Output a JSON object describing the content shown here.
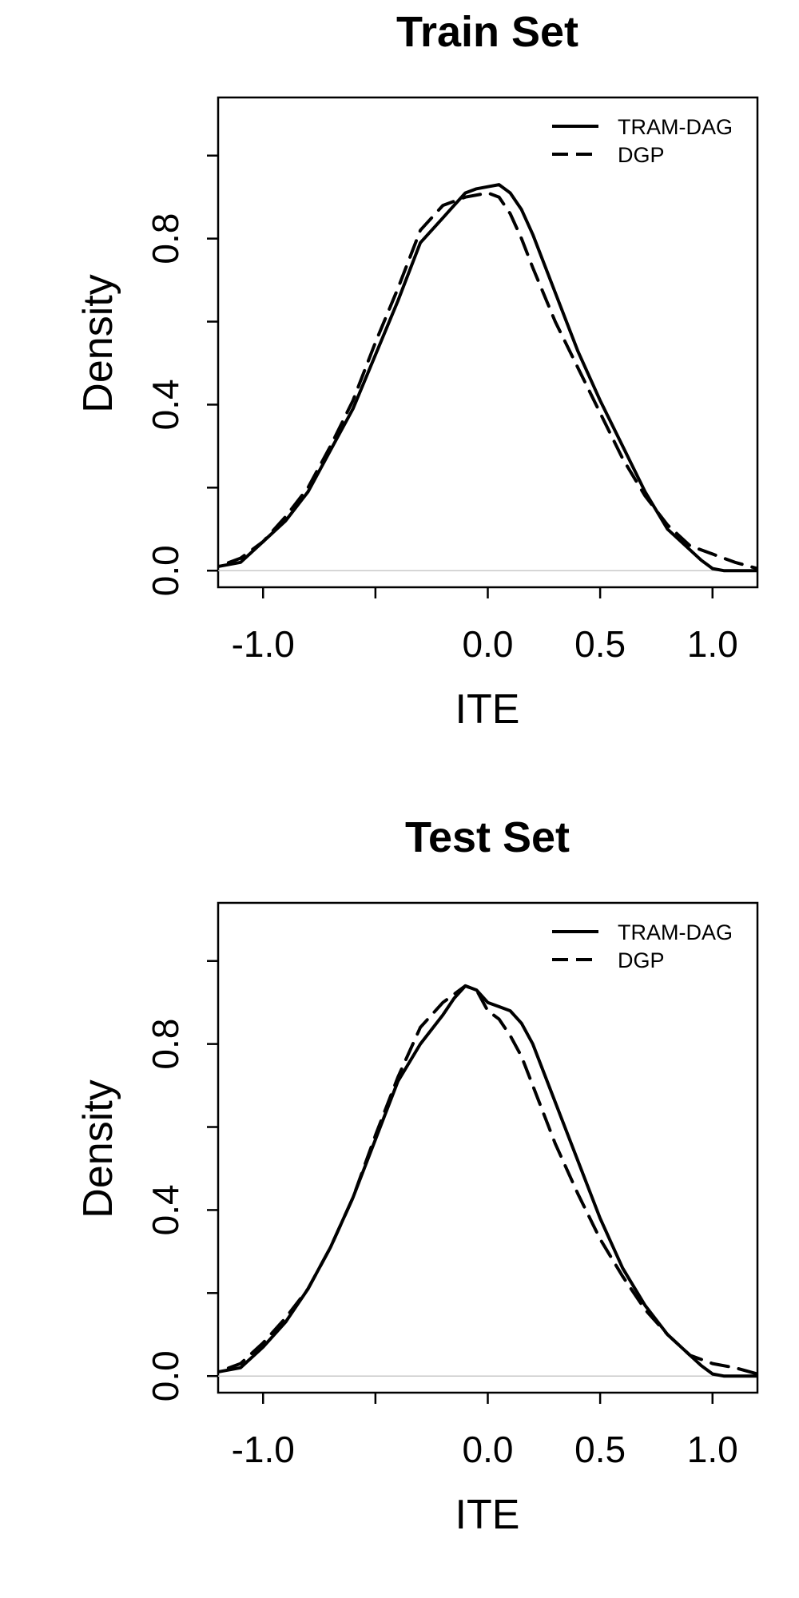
{
  "chart_data": [
    {
      "type": "line",
      "title": "Train Set",
      "xlabel": "ITE",
      "ylabel": "Density",
      "xlim": [
        -1.2,
        1.2
      ],
      "ylim": [
        -0.04,
        1.14
      ],
      "x_ticks": [
        -1.0,
        -0.5,
        0.0,
        0.5,
        1.0
      ],
      "x_tick_labels": [
        "-1.0",
        "",
        "0.0",
        "0.5",
        "1.0"
      ],
      "y_ticks": [
        0.0,
        0.2,
        0.4,
        0.6,
        0.8,
        1.0
      ],
      "y_tick_labels": [
        "0.0",
        "",
        "0.4",
        "",
        "0.8",
        ""
      ],
      "grid": false,
      "zero_line": true,
      "legend": {
        "position": "top-right",
        "entries": [
          "TRAM-DAG",
          "DGP"
        ]
      },
      "series": [
        {
          "name": "TRAM-DAG",
          "line_style": "solid",
          "x": [
            -1.3,
            -1.1,
            -1.0,
            -0.9,
            -0.8,
            -0.7,
            -0.6,
            -0.5,
            -0.4,
            -0.3,
            -0.2,
            -0.15,
            -0.1,
            -0.05,
            0.0,
            0.05,
            0.1,
            0.15,
            0.2,
            0.3,
            0.4,
            0.5,
            0.6,
            0.7,
            0.8,
            0.9,
            0.95,
            1.0,
            1.05,
            1.3
          ],
          "y": [
            0.0,
            0.02,
            0.07,
            0.12,
            0.19,
            0.29,
            0.39,
            0.52,
            0.65,
            0.79,
            0.85,
            0.88,
            0.91,
            0.92,
            0.925,
            0.93,
            0.91,
            0.87,
            0.81,
            0.67,
            0.53,
            0.41,
            0.3,
            0.19,
            0.1,
            0.05,
            0.025,
            0.005,
            0.0,
            0.0
          ]
        },
        {
          "name": "DGP",
          "line_style": "dashed",
          "x": [
            -1.4,
            -1.2,
            -1.1,
            -1.0,
            -0.9,
            -0.8,
            -0.7,
            -0.6,
            -0.5,
            -0.4,
            -0.3,
            -0.2,
            -0.1,
            0.0,
            0.05,
            0.1,
            0.15,
            0.2,
            0.3,
            0.4,
            0.5,
            0.6,
            0.7,
            0.8,
            0.9,
            1.0,
            1.05,
            1.1,
            1.2,
            1.3
          ],
          "y": [
            0.005,
            0.01,
            0.03,
            0.07,
            0.13,
            0.2,
            0.3,
            0.41,
            0.55,
            0.68,
            0.82,
            0.88,
            0.9,
            0.91,
            0.9,
            0.86,
            0.8,
            0.73,
            0.6,
            0.49,
            0.38,
            0.27,
            0.18,
            0.11,
            0.06,
            0.04,
            0.03,
            0.02,
            0.005,
            0.0
          ]
        }
      ]
    },
    {
      "type": "line",
      "title": "Test Set",
      "xlabel": "ITE",
      "ylabel": "Density",
      "xlim": [
        -1.2,
        1.2
      ],
      "ylim": [
        -0.04,
        1.14
      ],
      "x_ticks": [
        -1.0,
        -0.5,
        0.0,
        0.5,
        1.0
      ],
      "x_tick_labels": [
        "-1.0",
        "",
        "0.0",
        "0.5",
        "1.0"
      ],
      "y_ticks": [
        0.0,
        0.2,
        0.4,
        0.6,
        0.8,
        1.0
      ],
      "y_tick_labels": [
        "0.0",
        "",
        "0.4",
        "",
        "0.8",
        ""
      ],
      "grid": false,
      "zero_line": true,
      "legend": {
        "position": "top-right",
        "entries": [
          "TRAM-DAG",
          "DGP"
        ]
      },
      "series": [
        {
          "name": "TRAM-DAG",
          "line_style": "solid",
          "x": [
            -1.3,
            -1.1,
            -1.0,
            -0.9,
            -0.8,
            -0.7,
            -0.6,
            -0.5,
            -0.4,
            -0.3,
            -0.2,
            -0.15,
            -0.1,
            -0.05,
            0.0,
            0.05,
            0.1,
            0.15,
            0.2,
            0.3,
            0.4,
            0.5,
            0.6,
            0.7,
            0.8,
            0.9,
            0.95,
            1.0,
            1.05,
            1.3
          ],
          "y": [
            0.0,
            0.02,
            0.07,
            0.13,
            0.21,
            0.31,
            0.43,
            0.57,
            0.71,
            0.8,
            0.87,
            0.91,
            0.94,
            0.93,
            0.9,
            0.89,
            0.88,
            0.85,
            0.8,
            0.66,
            0.52,
            0.38,
            0.26,
            0.17,
            0.1,
            0.05,
            0.025,
            0.005,
            0.0,
            0.0
          ]
        },
        {
          "name": "DGP",
          "line_style": "dashed",
          "x": [
            -1.4,
            -1.2,
            -1.1,
            -1.0,
            -0.9,
            -0.8,
            -0.7,
            -0.6,
            -0.5,
            -0.4,
            -0.3,
            -0.2,
            -0.1,
            -0.05,
            0.0,
            0.05,
            0.1,
            0.15,
            0.2,
            0.3,
            0.4,
            0.5,
            0.6,
            0.7,
            0.8,
            0.9,
            1.0,
            1.1,
            1.2,
            1.3
          ],
          "y": [
            0.005,
            0.01,
            0.03,
            0.08,
            0.14,
            0.21,
            0.31,
            0.43,
            0.58,
            0.72,
            0.84,
            0.9,
            0.94,
            0.93,
            0.88,
            0.86,
            0.82,
            0.77,
            0.7,
            0.56,
            0.44,
            0.33,
            0.24,
            0.16,
            0.1,
            0.05,
            0.03,
            0.02,
            0.005,
            0.0
          ]
        }
      ]
    }
  ]
}
